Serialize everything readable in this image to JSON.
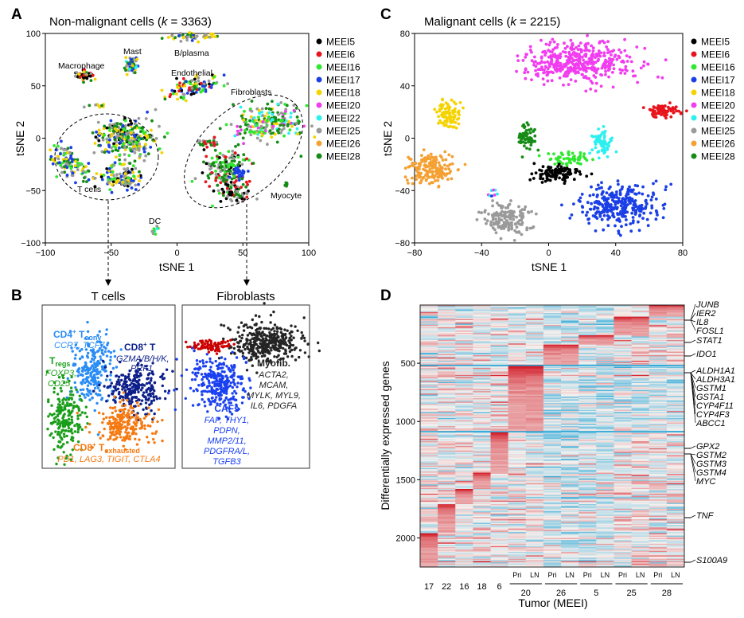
{
  "panel_labels": {
    "a": "A",
    "b": "B",
    "c": "C",
    "d": "D"
  },
  "colors": {
    "MEEI5": "#000000",
    "MEEI6": "#e8141c",
    "MEEI16": "#2fe82f",
    "MEEI17": "#1a3fe6",
    "MEEI18": "#f5d300",
    "MEEI20": "#f23cf0",
    "MEEI22": "#2cf0f0",
    "MEEI25": "#9a9a9a",
    "MEEI26": "#f5a032",
    "MEEI28": "#168c16"
  },
  "legend": [
    "MEEI5",
    "MEEI6",
    "MEEI16",
    "MEEI17",
    "MEEI18",
    "MEEI20",
    "MEEI22",
    "MEEI25",
    "MEEI26",
    "MEEI28"
  ],
  "chart_data": [
    {
      "id": "A",
      "type": "scatter",
      "title": {
        "prefix": "Non-malignant cells (",
        "k": "k",
        "suffix": " = 3363)"
      },
      "xlabel": "tSNE 1",
      "ylabel": "tSNE 2",
      "xlim": [
        -100,
        100
      ],
      "ylim": [
        -100,
        100
      ],
      "xticks": [
        "-100",
        "-50",
        "0",
        "50",
        "100"
      ],
      "yticks": [
        "-100",
        "-50",
        "0",
        "50",
        "100"
      ],
      "annotations": [
        "Macrophage",
        "Mast",
        "B/plasma",
        "Endothelial",
        "Fibroblasts",
        "T cells",
        "Myocyte",
        "DC"
      ],
      "clusters": [
        {
          "name": "Macrophage",
          "cx": -70,
          "cy": 60,
          "sx": 3,
          "sy": 2.5,
          "n": 60,
          "samples": [
            "MEEI5",
            "MEEI5",
            "MEEI6",
            "MEEI25",
            "MEEI28",
            "MEEI18"
          ]
        },
        {
          "name": "Mast",
          "cx": -34,
          "cy": 69,
          "sx": 2.5,
          "sy": 5,
          "n": 50,
          "samples": [
            "MEEI22",
            "MEEI25",
            "MEEI28",
            "MEEI18",
            "MEEI17"
          ]
        },
        {
          "name": "B/plasma",
          "cx": 12,
          "cy": 97,
          "sx": 9,
          "sy": 1.5,
          "n": 50,
          "samples": [
            "MEEI28",
            "MEEI25",
            "MEEI18",
            "MEEI17"
          ]
        },
        {
          "name": "Endothelial",
          "cx": 12,
          "cy": 48,
          "sx": 10,
          "sy": 4,
          "n": 110,
          "rot": 0.35,
          "samples": [
            "MEEI5",
            "MEEI6",
            "MEEI28",
            "MEEI17",
            "MEEI16",
            "MEEI18",
            "MEEI25"
          ]
        },
        {
          "name": "small",
          "cx": -62,
          "cy": 31,
          "sx": 4,
          "sy": 1,
          "n": 10,
          "samples": [
            "MEEI28",
            "MEEI25",
            "MEEI18"
          ]
        },
        {
          "name": "T cells 1",
          "cx": -43,
          "cy": 5,
          "sx": 10,
          "sy": 7,
          "n": 170,
          "samples": [
            "MEEI25",
            "MEEI25",
            "MEEI18",
            "MEEI17",
            "MEEI16",
            "MEEI28",
            "MEEI5"
          ]
        },
        {
          "name": "T cells 2",
          "cx": -35,
          "cy": -5,
          "sx": 9,
          "sy": 9,
          "n": 140,
          "samples": [
            "MEEI17",
            "MEEI18",
            "MEEI16",
            "MEEI25",
            "MEEI28"
          ]
        },
        {
          "name": "T cells 3",
          "cx": -80,
          "cy": -25,
          "sx": 6,
          "sy": 10,
          "n": 110,
          "rot": 0.6,
          "samples": [
            "MEEI16",
            "MEEI18",
            "MEEI25",
            "MEEI17",
            "MEEI28"
          ]
        },
        {
          "name": "T cells 4",
          "cx": -43,
          "cy": -38,
          "sx": 8,
          "sy": 6,
          "n": 110,
          "samples": [
            "MEEI17",
            "MEEI16",
            "MEEI18",
            "MEEI5",
            "MEEI25"
          ]
        },
        {
          "name": "Fibroblasts 1",
          "cx": 70,
          "cy": 15,
          "sx": 13,
          "sy": 9,
          "n": 220,
          "samples": [
            "MEEI25",
            "MEEI28",
            "MEEI28",
            "MEEI16",
            "MEEI22",
            "MEEI20",
            "MEEI18"
          ]
        },
        {
          "name": "Fibroblasts 2",
          "cx": 37,
          "cy": -30,
          "sx": 9,
          "sy": 12,
          "n": 170,
          "samples": [
            "MEEI28",
            "MEEI28",
            "MEEI25",
            "MEEI6",
            "MEEI5",
            "MEEI16"
          ]
        },
        {
          "name": "Fibroblasts 3",
          "cx": 46,
          "cy": -52,
          "sx": 6,
          "sy": 5,
          "n": 60,
          "samples": [
            "MEEI28",
            "MEEI5",
            "MEEI6",
            "MEEI25"
          ]
        },
        {
          "name": "Fibroblasts 4",
          "cx": 23,
          "cy": -5,
          "sx": 4,
          "sy": 2,
          "n": 30,
          "samples": [
            "MEEI28",
            "MEEI6",
            "MEEI25"
          ]
        },
        {
          "name": "Fibroblasts 5",
          "cx": 47,
          "cy": -33,
          "sx": 3,
          "sy": 3,
          "n": 25,
          "samples": [
            "MEEI17"
          ]
        },
        {
          "name": "Myocyte",
          "cx": 83,
          "cy": -44,
          "sx": 1,
          "sy": 1.2,
          "n": 8,
          "samples": [
            "MEEI28"
          ]
        },
        {
          "name": "DC",
          "cx": -17,
          "cy": -89,
          "sx": 1,
          "sy": 2,
          "n": 10,
          "samples": [
            "MEEI25",
            "MEEI16",
            "MEEI22"
          ]
        }
      ]
    },
    {
      "id": "C",
      "type": "scatter",
      "title": {
        "prefix": "Malignant cells (",
        "k": "k",
        "suffix": " = 2215)"
      },
      "xlabel": "tSNE 1",
      "ylabel": "tSNE 2",
      "xlim": [
        -80,
        80
      ],
      "ylim": [
        -80,
        80
      ],
      "xticks": [
        "-80",
        "-40",
        "0",
        "40",
        "80"
      ],
      "yticks": [
        "-80",
        "-40",
        "0",
        "40",
        "80"
      ],
      "clusters": [
        {
          "name": "MEEI20",
          "cx": 18,
          "cy": 58,
          "sx": 16,
          "sy": 8,
          "n": 420,
          "samples": [
            "MEEI20"
          ]
        },
        {
          "name": "MEEI6",
          "cx": 68,
          "cy": 21,
          "sx": 5,
          "sy": 2.5,
          "n": 70,
          "samples": [
            "MEEI6"
          ]
        },
        {
          "name": "MEEI18",
          "cx": -60,
          "cy": 18,
          "sx": 3.5,
          "sy": 6,
          "n": 80,
          "samples": [
            "MEEI18"
          ]
        },
        {
          "name": "MEEI28",
          "cx": -13,
          "cy": 1,
          "sx": 2.5,
          "sy": 4.5,
          "n": 60,
          "samples": [
            "MEEI28"
          ]
        },
        {
          "name": "MEEI22",
          "cx": 32,
          "cy": -4,
          "sx": 3,
          "sy": 5,
          "n": 70,
          "samples": [
            "MEEI22"
          ]
        },
        {
          "name": "MEEI16",
          "cx": 12,
          "cy": -16,
          "sx": 6,
          "sy": 3,
          "n": 60,
          "samples": [
            "MEEI16"
          ]
        },
        {
          "name": "MEEI5",
          "cx": 5,
          "cy": -27,
          "sx": 7,
          "sy": 3,
          "n": 110,
          "samples": [
            "MEEI5"
          ]
        },
        {
          "name": "MEEI26",
          "cx": -70,
          "cy": -23,
          "sx": 7,
          "sy": 6,
          "n": 180,
          "samples": [
            "MEEI26"
          ]
        },
        {
          "name": "MEEI25",
          "cx": -25,
          "cy": -62,
          "sx": 7,
          "sy": 6,
          "n": 160,
          "samples": [
            "MEEI25"
          ]
        },
        {
          "name": "MEEI17",
          "cx": 42,
          "cy": -51,
          "sx": 11,
          "sy": 8,
          "n": 300,
          "samples": [
            "MEEI17"
          ]
        },
        {
          "name": "mixed",
          "cx": -33,
          "cy": -42,
          "sx": 1.5,
          "sy": 1.5,
          "n": 8,
          "samples": [
            "MEEI20",
            "MEEI26",
            "MEEI22",
            "MEEI17"
          ]
        }
      ]
    },
    {
      "id": "B1",
      "type": "scatter",
      "title": "T cells",
      "clusters": [
        {
          "name": "CD4 Tconv",
          "cx": 38,
          "cy": 60,
          "sx": 8,
          "sy": 11,
          "n": 230,
          "color": "#2a8cf5",
          "label": {
            "main": "CD4",
            "sup": "+",
            "mid": " T",
            "sub": "conv"
          },
          "markers": "CCR7, TCF7"
        },
        {
          "name": "CD8 T",
          "cx": 70,
          "cy": 48,
          "sx": 11,
          "sy": 7,
          "n": 260,
          "color": "#0c1f8a",
          "label": {
            "main": "CD8",
            "sup": "+",
            "mid": " T",
            "sub": ""
          },
          "markers": [
            "GZMA/B/H/K,",
            "PRF1"
          ]
        },
        {
          "name": "Tregs",
          "cx": 18,
          "cy": 30,
          "sx": 6,
          "sy": 11,
          "n": 200,
          "color": "#1a9e1a",
          "label": {
            "main": "T",
            "sup": "",
            "mid": "",
            "sub": "regs"
          },
          "markers": [
            "FOXP3,",
            "CD25"
          ]
        },
        {
          "name": "CD8 Texhausted",
          "cx": 62,
          "cy": 27,
          "sx": 11,
          "sy": 6,
          "n": 230,
          "color": "#f57a12",
          "label": {
            "main": "CD8",
            "sup": "+",
            "mid": " T",
            "sub": "exhausted"
          },
          "markers": "PD1, LAG3, TIGIT, CTLA4"
        }
      ]
    },
    {
      "id": "B2",
      "type": "scatter",
      "title": "Fibroblasts",
      "clusters": [
        {
          "name": "Myofib.",
          "cx": 65,
          "cy": 78,
          "sx": 14,
          "sy": 6,
          "n": 380,
          "color": "#242424",
          "label": "Myofib.",
          "markers": [
            "ACTA2,",
            "MCAM,",
            "MYLK, MYL9,",
            "IL6, PDGFA"
          ]
        },
        {
          "name": "CAFs",
          "cx": 28,
          "cy": 53,
          "sx": 11,
          "sy": 9,
          "n": 300,
          "color": "#1a40f0",
          "label": "CAFs",
          "markers": [
            "FAP, THY1,",
            "PDPN,",
            "MMP2/11,",
            "PDGFRA/L,",
            "TGFB3"
          ]
        },
        {
          "name": "branch",
          "cx": 24,
          "cy": 75,
          "sx": 8,
          "sy": 2,
          "n": 90,
          "color": "#cc0000"
        }
      ]
    },
    {
      "id": "D",
      "type": "heatmap",
      "ylabel": "Differentially expressed genes",
      "xlabel": "Tumor (MEEI)",
      "ylim": [
        0,
        2250
      ],
      "yticks": [
        "500",
        "1000",
        "1500",
        "2000"
      ],
      "columns": [
        {
          "tumor": "17",
          "sub": "",
          "block": [
            1960,
            2250
          ]
        },
        {
          "tumor": "22",
          "sub": "",
          "block": [
            1710,
            1960
          ]
        },
        {
          "tumor": "16",
          "sub": "",
          "block": [
            1580,
            1710
          ]
        },
        {
          "tumor": "18",
          "sub": "",
          "block": [
            1440,
            1580
          ]
        },
        {
          "tumor": "6",
          "sub": "",
          "block": [
            1090,
            1440
          ]
        },
        {
          "tumor": "20",
          "sub": "Pri",
          "block": [
            520,
            1090
          ]
        },
        {
          "tumor": "20",
          "sub": "LN",
          "block": [
            520,
            1090
          ]
        },
        {
          "tumor": "26",
          "sub": "Pri",
          "block": [
            340,
            520
          ]
        },
        {
          "tumor": "26",
          "sub": "LN",
          "block": [
            340,
            520
          ]
        },
        {
          "tumor": "5",
          "sub": "Pri",
          "block": [
            260,
            340
          ]
        },
        {
          "tumor": "5",
          "sub": "LN",
          "block": [
            260,
            340
          ]
        },
        {
          "tumor": "25",
          "sub": "Pri",
          "block": [
            100,
            260
          ]
        },
        {
          "tumor": "25",
          "sub": "LN",
          "block": [
            100,
            260
          ]
        },
        {
          "tumor": "28",
          "sub": "Pri",
          "block": [
            0,
            100
          ]
        },
        {
          "tumor": "28",
          "sub": "LN",
          "block": [
            0,
            100
          ]
        }
      ],
      "tumor_groups": [
        "17",
        "22",
        "16",
        "18",
        "6",
        "20",
        "26",
        "5",
        "25",
        "28"
      ],
      "genes": [
        "JUNB",
        "IER2",
        "IL8",
        "FOSL1",
        "STAT1",
        "IDO1",
        "ALDH1A1",
        "ALDH3A1",
        "GSTM1",
        "GSTA1",
        "CYP4F11",
        "CYP4F3",
        "ABCC1",
        "GPX2",
        "GSTM2",
        "GSTM3",
        "GSTM4",
        "MYC",
        "TNF",
        "S100A9"
      ],
      "color_scale": {
        "low": "#2aa8d8",
        "mid": "#f6f1ee",
        "high": "#d0101c"
      }
    }
  ]
}
